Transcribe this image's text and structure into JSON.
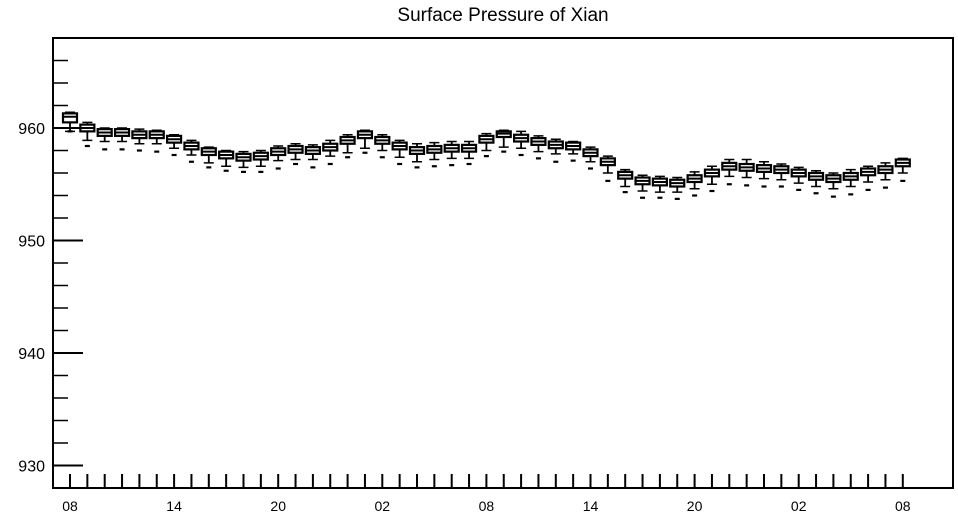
{
  "chart_data": {
    "type": "box",
    "title": "Surface Pressure of Xian",
    "xlabel": "",
    "ylabel": "",
    "ylim": [
      928,
      968
    ],
    "yticks": [
      930,
      940,
      950,
      960
    ],
    "x_tick_labels": [
      "08",
      "14",
      "20",
      "02",
      "08",
      "14",
      "20",
      "02",
      "08"
    ],
    "x_tick_label_steps": [
      0,
      6,
      12,
      18,
      24,
      30,
      36,
      42,
      48
    ],
    "time_step_hours": 1,
    "grid": false,
    "legend": "none",
    "boxes": [
      {
        "step": 0,
        "min": 959.7,
        "q1": 960.5,
        "median": 961.0,
        "q3": 961.3,
        "max": 961.4,
        "outlier": 959.7
      },
      {
        "step": 1,
        "min": 958.9,
        "q1": 959.7,
        "median": 960.0,
        "q3": 960.3,
        "max": 960.5,
        "outlier": 958.4
      },
      {
        "step": 2,
        "min": 958.8,
        "q1": 959.3,
        "median": 959.6,
        "q3": 959.9,
        "max": 960.0,
        "outlier": 958.1
      },
      {
        "step": 3,
        "min": 958.8,
        "q1": 959.3,
        "median": 959.6,
        "q3": 959.9,
        "max": 960.0,
        "outlier": 958.1
      },
      {
        "step": 4,
        "min": 958.6,
        "q1": 959.1,
        "median": 959.4,
        "q3": 959.7,
        "max": 959.9,
        "outlier": 958.0
      },
      {
        "step": 5,
        "min": 958.6,
        "q1": 959.1,
        "median": 959.4,
        "q3": 959.7,
        "max": 959.8,
        "outlier": 957.9
      },
      {
        "step": 6,
        "min": 958.2,
        "q1": 958.7,
        "median": 959.0,
        "q3": 959.3,
        "max": 959.4,
        "outlier": 957.6
      },
      {
        "step": 7,
        "min": 957.6,
        "q1": 958.1,
        "median": 958.4,
        "q3": 958.7,
        "max": 958.9,
        "outlier": 957.0
      },
      {
        "step": 8,
        "min": 956.9,
        "q1": 957.6,
        "median": 957.9,
        "q3": 958.2,
        "max": 958.3,
        "outlier": 956.5
      },
      {
        "step": 9,
        "min": 956.6,
        "q1": 957.3,
        "median": 957.6,
        "q3": 957.9,
        "max": 958.0,
        "outlier": 956.2
      },
      {
        "step": 10,
        "min": 956.5,
        "q1": 957.1,
        "median": 957.4,
        "q3": 957.7,
        "max": 957.9,
        "outlier": 956.1
      },
      {
        "step": 11,
        "min": 956.6,
        "q1": 957.2,
        "median": 957.5,
        "q3": 957.8,
        "max": 958.0,
        "outlier": 956.1
      },
      {
        "step": 12,
        "min": 957.1,
        "q1": 957.6,
        "median": 957.9,
        "q3": 958.2,
        "max": 958.4,
        "outlier": 956.4
      },
      {
        "step": 13,
        "min": 957.2,
        "q1": 957.8,
        "median": 958.1,
        "q3": 958.4,
        "max": 958.6,
        "outlier": 956.8
      },
      {
        "step": 14,
        "min": 957.2,
        "q1": 957.7,
        "median": 958.0,
        "q3": 958.3,
        "max": 958.5,
        "outlier": 956.5
      },
      {
        "step": 15,
        "min": 957.5,
        "q1": 958.0,
        "median": 958.3,
        "q3": 958.6,
        "max": 958.9,
        "outlier": 956.8
      },
      {
        "step": 16,
        "min": 957.8,
        "q1": 958.6,
        "median": 958.9,
        "q3": 959.2,
        "max": 959.4,
        "outlier": 957.4
      },
      {
        "step": 17,
        "min": 958.2,
        "q1": 959.1,
        "median": 959.4,
        "q3": 959.7,
        "max": 959.8,
        "outlier": 957.8
      },
      {
        "step": 18,
        "min": 958.0,
        "q1": 958.6,
        "median": 958.9,
        "q3": 959.2,
        "max": 959.4,
        "outlier": 957.4
      },
      {
        "step": 19,
        "min": 957.4,
        "q1": 958.1,
        "median": 958.4,
        "q3": 958.7,
        "max": 958.9,
        "outlier": 956.8
      },
      {
        "step": 20,
        "min": 957.0,
        "q1": 957.7,
        "median": 958.0,
        "q3": 958.3,
        "max": 958.6,
        "outlier": 956.5
      },
      {
        "step": 21,
        "min": 957.2,
        "q1": 957.8,
        "median": 958.1,
        "q3": 958.4,
        "max": 958.7,
        "outlier": 956.6
      },
      {
        "step": 22,
        "min": 957.3,
        "q1": 957.9,
        "median": 958.2,
        "q3": 958.5,
        "max": 958.8,
        "outlier": 956.7
      },
      {
        "step": 23,
        "min": 957.3,
        "q1": 957.9,
        "median": 958.2,
        "q3": 958.5,
        "max": 958.8,
        "outlier": 956.8
      },
      {
        "step": 24,
        "min": 958.0,
        "q1": 958.7,
        "median": 959.0,
        "q3": 959.3,
        "max": 959.5,
        "outlier": 957.5
      },
      {
        "step": 25,
        "min": 958.3,
        "q1": 959.2,
        "median": 959.5,
        "q3": 959.7,
        "max": 959.8,
        "outlier": 957.9
      },
      {
        "step": 26,
        "min": 958.2,
        "q1": 958.8,
        "median": 959.1,
        "q3": 959.4,
        "max": 959.7,
        "outlier": 957.6
      },
      {
        "step": 27,
        "min": 957.9,
        "q1": 958.5,
        "median": 958.8,
        "q3": 959.1,
        "max": 959.3,
        "outlier": 957.3
      },
      {
        "step": 28,
        "min": 957.7,
        "q1": 958.2,
        "median": 958.5,
        "q3": 958.8,
        "max": 959.0,
        "outlier": 957.0
      },
      {
        "step": 29,
        "min": 957.7,
        "q1": 958.1,
        "median": 958.4,
        "q3": 958.7,
        "max": 958.8,
        "outlier": 957.1
      },
      {
        "step": 30,
        "min": 957.0,
        "q1": 957.5,
        "median": 957.8,
        "q3": 958.1,
        "max": 958.3,
        "outlier": 956.4
      },
      {
        "step": 31,
        "min": 956.0,
        "q1": 956.7,
        "median": 957.0,
        "q3": 957.3,
        "max": 957.5,
        "outlier": 955.3
      },
      {
        "step": 32,
        "min": 954.8,
        "q1": 955.5,
        "median": 955.8,
        "q3": 956.1,
        "max": 956.3,
        "outlier": 954.3
      },
      {
        "step": 33,
        "min": 954.4,
        "q1": 955.0,
        "median": 955.3,
        "q3": 955.6,
        "max": 955.8,
        "outlier": 953.8
      },
      {
        "step": 34,
        "min": 954.3,
        "q1": 954.9,
        "median": 955.2,
        "q3": 955.5,
        "max": 955.7,
        "outlier": 953.8
      },
      {
        "step": 35,
        "min": 954.3,
        "q1": 954.8,
        "median": 955.1,
        "q3": 955.4,
        "max": 955.6,
        "outlier": 953.7
      },
      {
        "step": 36,
        "min": 954.6,
        "q1": 955.2,
        "median": 955.5,
        "q3": 955.8,
        "max": 956.1,
        "outlier": 954.0
      },
      {
        "step": 37,
        "min": 955.0,
        "q1": 955.7,
        "median": 956.0,
        "q3": 956.3,
        "max": 956.6,
        "outlier": 954.4
      },
      {
        "step": 38,
        "min": 955.7,
        "q1": 956.3,
        "median": 956.6,
        "q3": 956.9,
        "max": 957.2,
        "outlier": 955.0
      },
      {
        "step": 39,
        "min": 955.6,
        "q1": 956.2,
        "median": 956.5,
        "q3": 956.8,
        "max": 957.2,
        "outlier": 954.9
      },
      {
        "step": 40,
        "min": 955.5,
        "q1": 956.1,
        "median": 956.4,
        "q3": 956.7,
        "max": 957.0,
        "outlier": 954.8
      },
      {
        "step": 41,
        "min": 955.4,
        "q1": 956.0,
        "median": 956.3,
        "q3": 956.6,
        "max": 956.8,
        "outlier": 954.8
      },
      {
        "step": 42,
        "min": 955.1,
        "q1": 955.7,
        "median": 956.0,
        "q3": 956.3,
        "max": 956.5,
        "outlier": 954.5
      },
      {
        "step": 43,
        "min": 954.8,
        "q1": 955.4,
        "median": 955.7,
        "q3": 956.0,
        "max": 956.2,
        "outlier": 954.2
      },
      {
        "step": 44,
        "min": 954.6,
        "q1": 955.2,
        "median": 955.5,
        "q3": 955.8,
        "max": 956.0,
        "outlier": 953.9
      },
      {
        "step": 45,
        "min": 954.8,
        "q1": 955.4,
        "median": 955.7,
        "q3": 956.0,
        "max": 956.3,
        "outlier": 954.1
      },
      {
        "step": 46,
        "min": 955.2,
        "q1": 955.8,
        "median": 956.1,
        "q3": 956.4,
        "max": 956.6,
        "outlier": 954.5
      },
      {
        "step": 47,
        "min": 955.4,
        "q1": 956.0,
        "median": 956.3,
        "q3": 956.6,
        "max": 956.9,
        "outlier": 954.7
      },
      {
        "step": 48,
        "min": 956.0,
        "q1": 956.6,
        "median": 956.9,
        "q3": 957.2,
        "max": 957.3,
        "outlier": 955.3
      }
    ]
  }
}
